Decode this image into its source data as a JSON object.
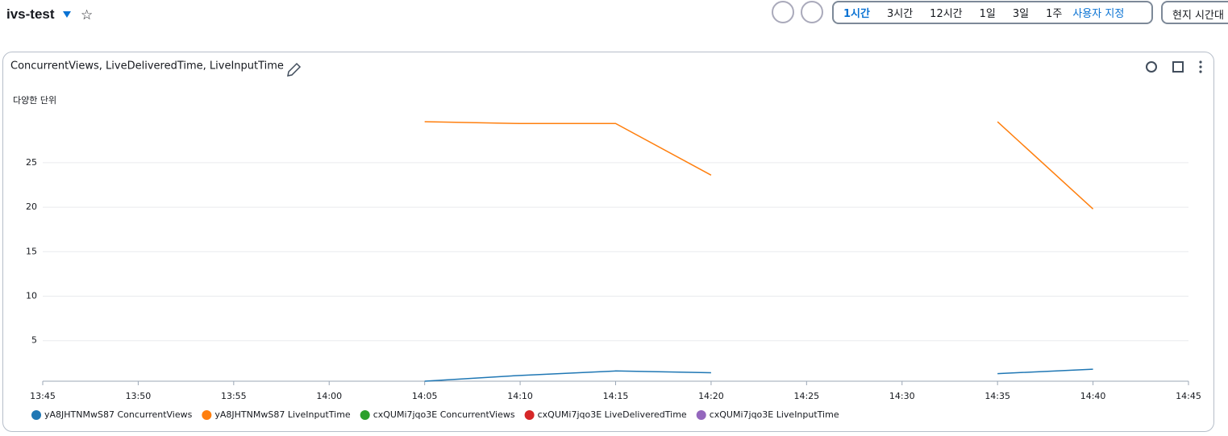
{
  "header": {
    "title": "ivs-test",
    "time_ranges": [
      "1시간",
      "3시간",
      "12시간",
      "1일",
      "3일",
      "1주"
    ],
    "selected_range": 0,
    "custom": "사용자 지정",
    "timezone": "현지 시간대"
  },
  "chart_data": {
    "type": "line",
    "title": "ConcurrentViews, LiveDeliveredTime, LiveInputTime",
    "y_label": "다양한 단위",
    "categories": [
      "13:45",
      "13:50",
      "13:55",
      "14:00",
      "14:05",
      "14:10",
      "14:15",
      "14:20",
      "14:25",
      "14:30",
      "14:35",
      "14:40",
      "14:45"
    ],
    "ylim": [
      0.45,
      30.6
    ],
    "yticks": [
      5,
      10,
      15,
      20,
      25
    ],
    "grid": true,
    "series": [
      {
        "name": "yA8JHTNMwS87 ConcurrentViews",
        "color": "#1f77b4",
        "values": [
          null,
          null,
          null,
          null,
          0.45,
          1.1,
          1.6,
          1.4,
          null,
          null,
          1.3,
          1.8,
          null
        ]
      },
      {
        "name": "yA8JHTNMwS87 LiveInputTime",
        "color": "#ff7f0e",
        "values": [
          null,
          null,
          null,
          null,
          29.6,
          29.4,
          29.4,
          23.6,
          null,
          null,
          29.6,
          19.8,
          null
        ]
      },
      {
        "name": "cxQUMi7jqo3E ConcurrentViews",
        "color": "#2ca02c",
        "values": [
          null,
          null,
          null,
          null,
          null,
          null,
          null,
          null,
          null,
          null,
          null,
          null,
          null
        ]
      },
      {
        "name": "cxQUMi7jqo3E LiveDeliveredTime",
        "color": "#d62728",
        "values": [
          null,
          null,
          null,
          null,
          null,
          null,
          null,
          null,
          null,
          null,
          null,
          null,
          null
        ]
      },
      {
        "name": "cxQUMi7jqo3E LiveInputTime",
        "color": "#9467bd",
        "values": [
          null,
          null,
          null,
          null,
          null,
          null,
          null,
          null,
          null,
          null,
          null,
          null,
          null
        ]
      }
    ]
  }
}
